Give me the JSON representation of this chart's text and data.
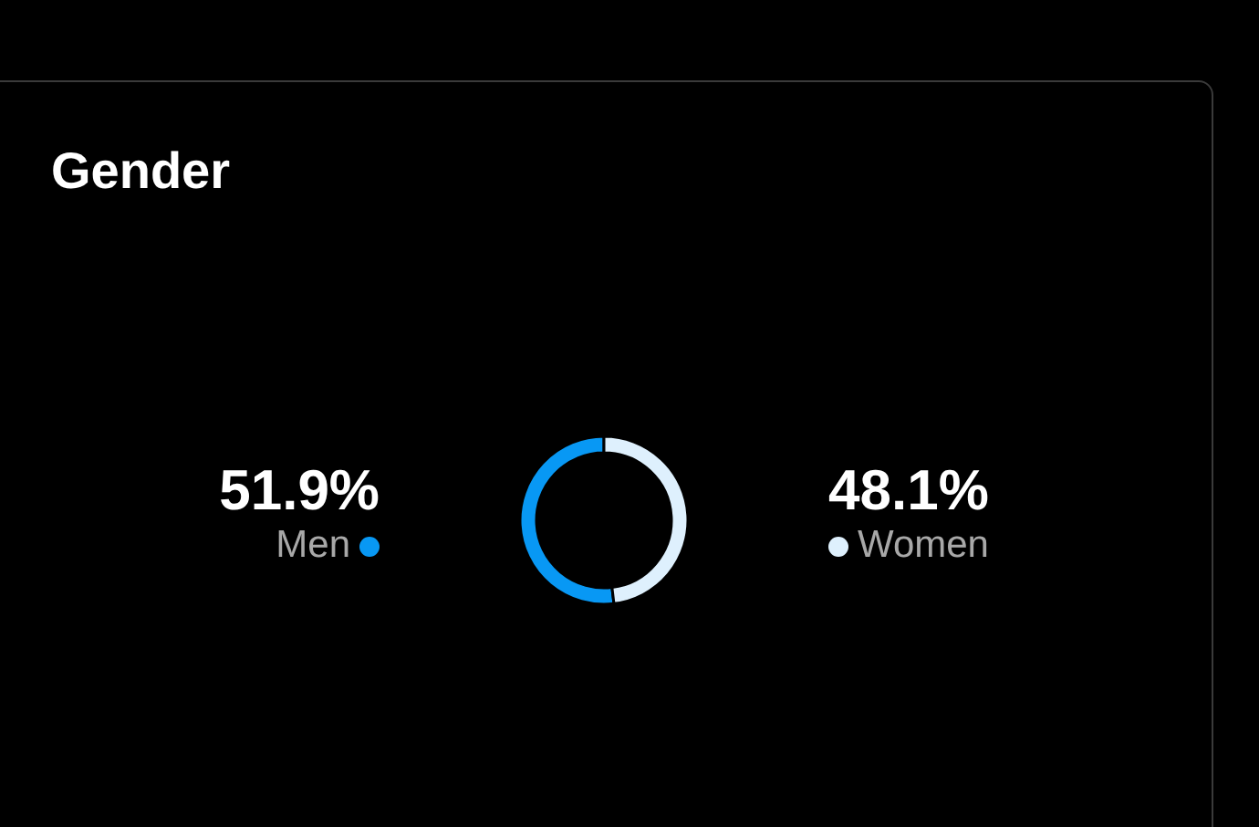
{
  "chart_data": {
    "type": "donut",
    "title": "Gender",
    "categories": [
      "Men",
      "Women"
    ],
    "values": [
      51.9,
      48.1
    ],
    "value_labels": [
      "51.9%",
      "48.1%"
    ],
    "colors": [
      "#0898f4",
      "#def0fd"
    ]
  }
}
